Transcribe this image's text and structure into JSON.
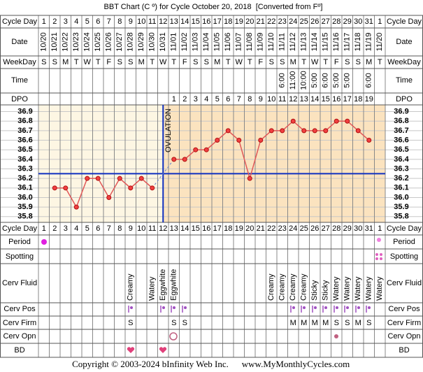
{
  "chart_data": {
    "type": "line",
    "title": "BBT Chart (C º) for Cycle October 20, 2018  [Converted from Fº]",
    "row_labels": {
      "cycle_day": "Cycle Day",
      "date": "Date",
      "weekday": "WeekDay",
      "time": "Time",
      "dpo": "DPO",
      "period": "Period",
      "spotting": "Spotting",
      "cerv_fluid": "Cerv Fluid",
      "cerv_pos": "Cerv Pos",
      "cerv_firm": "Cerv Firm",
      "cerv_opn": "Cerv Opn",
      "bd": "BD"
    },
    "cycle_days": [
      1,
      2,
      3,
      4,
      5,
      6,
      7,
      8,
      9,
      10,
      11,
      12,
      13,
      14,
      15,
      16,
      17,
      18,
      19,
      20,
      21,
      22,
      23,
      24,
      25,
      26,
      27,
      28,
      29,
      30,
      31,
      1
    ],
    "dates": [
      "10/20",
      "10/21",
      "10/22",
      "10/23",
      "10/24",
      "10/25",
      "10/26",
      "10/27",
      "10/28",
      "10/29",
      "10/30",
      "10/31",
      "11/01",
      "11/02",
      "11/03",
      "11/04",
      "11/05",
      "11/06",
      "11/07",
      "11/08",
      "11/09",
      "11/10",
      "11/11",
      "11/12",
      "11/13",
      "11/14",
      "11/15",
      "11/16",
      "11/17",
      "11/18",
      "11/19",
      "11/20"
    ],
    "weekdays": [
      "S",
      "S",
      "M",
      "T",
      "W",
      "T",
      "F",
      "S",
      "S",
      "M",
      "T",
      "W",
      "T",
      "F",
      "S",
      "S",
      "M",
      "T",
      "W",
      "T",
      "F",
      "S",
      "S",
      "M",
      "T",
      "W",
      "T",
      "F",
      "S",
      "S",
      "M",
      "T"
    ],
    "times": [
      null,
      null,
      null,
      null,
      null,
      null,
      null,
      null,
      null,
      null,
      null,
      null,
      null,
      null,
      null,
      null,
      null,
      null,
      null,
      null,
      null,
      null,
      "6:00",
      "11:00",
      "10:00",
      "5:00",
      "6:00",
      "5:00",
      "5:00",
      null,
      "6:00",
      null
    ],
    "dpo": [
      null,
      null,
      null,
      null,
      null,
      null,
      null,
      null,
      null,
      null,
      null,
      null,
      1,
      2,
      3,
      4,
      5,
      6,
      7,
      8,
      9,
      10,
      11,
      12,
      13,
      14,
      15,
      16,
      17,
      18,
      19,
      null
    ],
    "values": [
      null,
      36.1,
      36.1,
      35.9,
      36.2,
      36.2,
      36.0,
      36.2,
      36.1,
      36.2,
      36.1,
      null,
      36.4,
      36.4,
      36.5,
      36.5,
      36.6,
      36.7,
      36.6,
      36.2,
      36.6,
      36.7,
      36.7,
      36.8,
      36.7,
      36.7,
      36.7,
      36.8,
      36.8,
      36.7,
      36.6,
      null
    ],
    "color": "#e05858",
    "ovulation_label": "OVULATION",
    "ovulation_day": 12,
    "coverline": 36.25,
    "ylim": [
      35.74,
      36.97
    ],
    "yticks": [
      36.9,
      36.8,
      36.7,
      36.6,
      36.5,
      36.4,
      36.3,
      36.2,
      36.1,
      {
        "value": 36,
        "label": "36.0"
      },
      35.9,
      35.8
    ],
    "grid": true,
    "cerv_fluid": [
      null,
      null,
      null,
      null,
      null,
      null,
      null,
      null,
      "Creamy",
      null,
      "Watery",
      "Eggwhite",
      "Eggwhite",
      null,
      null,
      null,
      null,
      null,
      null,
      null,
      null,
      "Creamy",
      "Creamy",
      "Creamy",
      "Creamy",
      "Sticky",
      "Sticky",
      "Watery",
      "Watery",
      "Watery",
      "Watery",
      "Watery"
    ],
    "cerv_firm": [
      null,
      null,
      null,
      null,
      null,
      null,
      null,
      null,
      "S",
      null,
      null,
      null,
      "S",
      "S",
      null,
      null,
      null,
      null,
      null,
      null,
      null,
      null,
      null,
      "M",
      "M",
      "M",
      "M",
      "S",
      "S",
      "M",
      "S",
      null
    ],
    "footer_copyright": "Copyright © 2003-2024 bInfinity Web Inc.",
    "footer_url": "www.MyMonthlyCycles.com"
  }
}
